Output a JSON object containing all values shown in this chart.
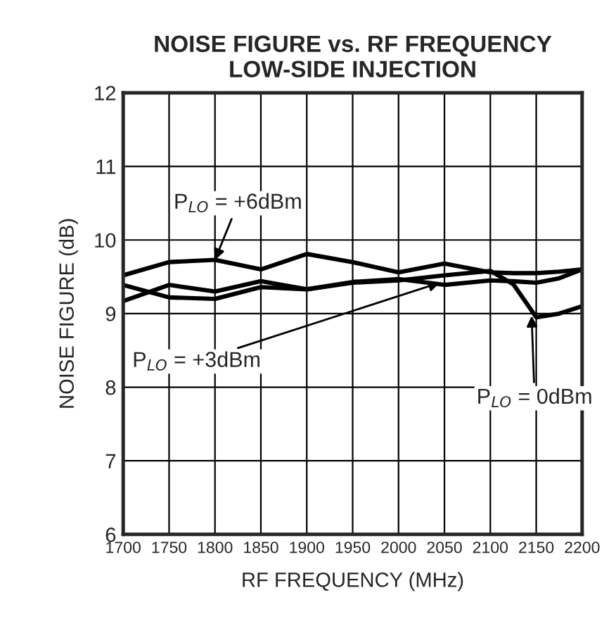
{
  "chart_data": {
    "type": "line",
    "title": "NOISE FIGURE vs. RF FREQUENCY\nLOW-SIDE INJECTION",
    "xlabel": "RF FREQUENCY (MHz)",
    "ylabel": "NOISE FIGURE (dB)",
    "x": [
      1700,
      1750,
      1800,
      1850,
      1900,
      1950,
      2000,
      2050,
      2100,
      2125,
      2150,
      2175,
      2200
    ],
    "series": [
      {
        "color": "#000000",
        "values": [
          9.52,
          9.7,
          9.73,
          9.6,
          9.81,
          9.7,
          9.56,
          9.68,
          9.56,
          9.55,
          9.55,
          9.57,
          9.6
        ]
      },
      {
        "color": "#000000",
        "values": [
          9.17,
          9.39,
          9.3,
          9.44,
          9.33,
          9.43,
          9.47,
          9.39,
          9.45,
          9.44,
          9.42,
          9.48,
          9.6
        ]
      },
      {
        "color": "#000000",
        "values": [
          9.39,
          9.22,
          9.2,
          9.36,
          9.33,
          9.42,
          9.45,
          9.52,
          9.58,
          9.4,
          8.95,
          9.0,
          9.1
        ]
      }
    ],
    "annotations": [
      {
        "text": "P$_{LO}$ = +6dBm",
        "x": 1800,
        "y": 9.73
      },
      {
        "text": "P$_{LO}$ = +3dBm",
        "x": 2045,
        "y": 9.42
      },
      {
        "text": "P$_{LO}$ = 0dBm",
        "x": 2145,
        "y": 8.97
      }
    ],
    "xlim": [
      1700,
      2200
    ],
    "xticks": [
      1700,
      1750,
      1800,
      1850,
      1900,
      1950,
      2000,
      2050,
      2100,
      2150,
      2200
    ],
    "ylim": [
      6,
      12
    ],
    "yticks": [
      6,
      7,
      8,
      9,
      10,
      11,
      12
    ],
    "grid": true,
    "legend": false,
    "line_style": "solid",
    "marker": "none"
  }
}
